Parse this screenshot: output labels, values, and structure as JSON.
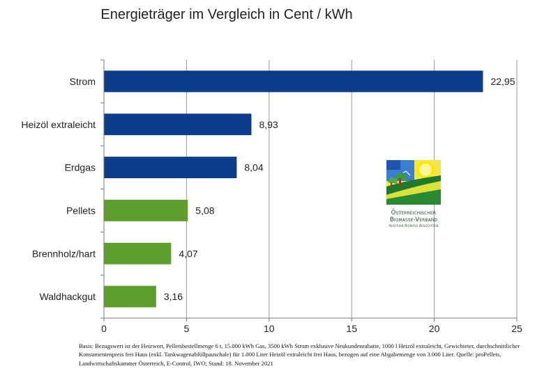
{
  "chart_data": {
    "type": "bar",
    "orientation": "horizontal",
    "title": "Energieträger im Vergleich in Cent / kWh",
    "categories": [
      "Strom",
      "Heizöl extraleicht",
      "Erdgas",
      "Pellets",
      "Brennholz/hart",
      "Waldhackgut"
    ],
    "values": [
      22.95,
      8.93,
      8.04,
      5.08,
      4.07,
      3.16
    ],
    "value_labels": [
      "22,95",
      "8,93",
      "8,04",
      "5,08",
      "4,07",
      "3,16"
    ],
    "bar_colors": [
      "#0d3d8a",
      "#0d3d8a",
      "#0d3d8a",
      "#5d9e2e",
      "#5d9e2e",
      "#5d9e2e"
    ],
    "xlim": [
      0,
      25
    ],
    "xticks": [
      0,
      5,
      10,
      15,
      20,
      25
    ],
    "xtick_labels": [
      "0",
      "5",
      "10",
      "15",
      "20",
      "25"
    ],
    "grid": "vertical",
    "xlabel": "",
    "ylabel": ""
  },
  "logo": {
    "line1": "Österreichischer",
    "line2": "Biomasse-Verband",
    "line3": "Austrian Biomass Association"
  },
  "footnote": "Basis: Bezugswert ist der Heizwert, Pelletsbestellmenge 6 t, 15.000 kWh Gas, 3500 kWh Strom exklusive Neukundenrabatte, 1000 l Heizöl extraleicht, Gewichteter, durchschnittlicher Konsumentenpreis frei Haus (exkl. Tankwagenabfüllpauschale) für 1.000 Liter Heizöl extraleicht frei Haus, bezogen auf eine Abgabemenge von 3.000 Liter. Quelle: proPellets, Landwirtschaftskammer Österreich, E-Control, IWO; Stand: 18. November  2021"
}
